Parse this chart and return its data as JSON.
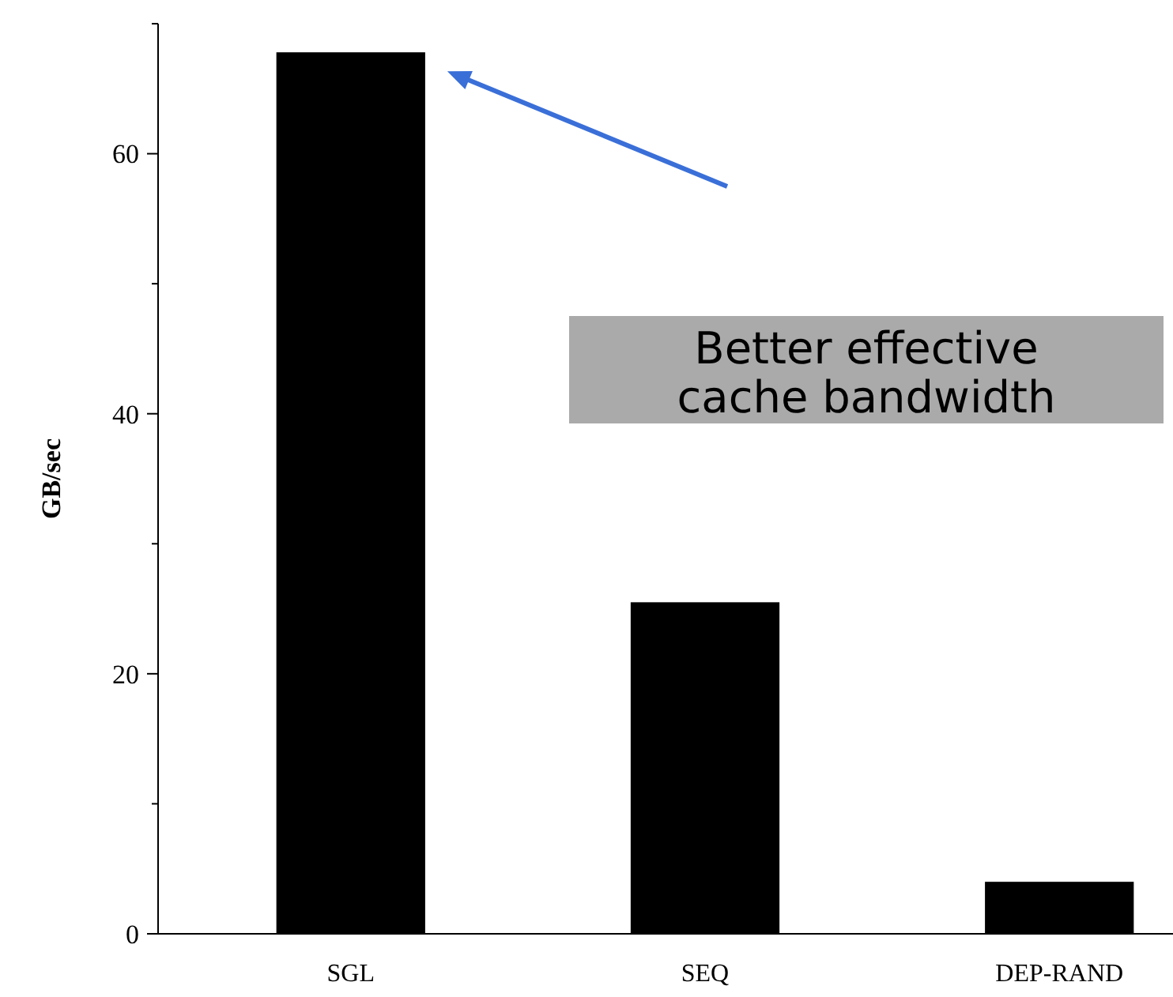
{
  "chart_data": {
    "type": "bar",
    "ylabel": "GB/sec",
    "categories": [
      "SGL",
      "SEQ",
      "DEP-RAND"
    ],
    "values": [
      67.8,
      25.5,
      4.0
    ],
    "color": "#000000",
    "ylim": [
      0,
      70
    ],
    "yticks": [
      0,
      {
        "value": 10,
        "label": null
      },
      20,
      {
        "value": 30,
        "label": null
      },
      40,
      {
        "value": 50,
        "label": null
      },
      60,
      {
        "value": 70,
        "label": null
      }
    ],
    "grid": false,
    "annotations": [
      "Better effective cache bandwidth"
    ]
  }
}
